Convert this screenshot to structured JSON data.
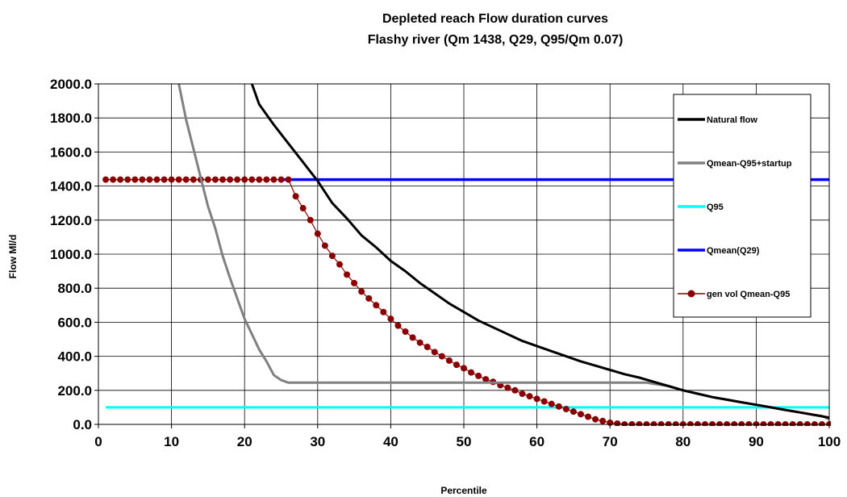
{
  "chart_data": {
    "type": "line",
    "title": "Depleted reach Flow duration curves",
    "subtitle": "Flashy river (Qm 1438, Q29, Q95/Qm 0.07)",
    "xlabel": "Percentile",
    "ylabel": "Flow Ml/d",
    "xlim": [
      0,
      100
    ],
    "ylim": [
      0,
      2000
    ],
    "x_ticks": [
      "0",
      "10",
      "20",
      "30",
      "40",
      "50",
      "60",
      "70",
      "80",
      "90",
      "100"
    ],
    "y_ticks": [
      "0.0",
      "200.0",
      "400.0",
      "600.0",
      "800.0",
      "1000.0",
      "1200.0",
      "1400.0",
      "1600.0",
      "1800.0",
      "2000.0"
    ],
    "grid": true,
    "legend_position": "right",
    "series": [
      {
        "name": "Natural flow",
        "color": "#000000",
        "x": [
          21,
          22,
          24,
          26,
          28,
          30,
          32,
          34,
          36,
          38,
          40,
          42,
          44,
          46,
          48,
          50,
          52,
          54,
          56,
          58,
          60,
          62,
          64,
          66,
          68,
          70,
          72,
          74,
          76,
          78,
          80,
          82,
          84,
          86,
          88,
          90,
          92,
          94,
          96,
          98,
          100
        ],
        "y": [
          2000,
          1880,
          1760,
          1650,
          1540,
          1430,
          1300,
          1210,
          1110,
          1040,
          960,
          900,
          830,
          770,
          710,
          660,
          610,
          570,
          530,
          490,
          460,
          430,
          400,
          370,
          345,
          320,
          295,
          275,
          250,
          225,
          200,
          180,
          160,
          145,
          130,
          115,
          100,
          85,
          70,
          55,
          40
        ]
      },
      {
        "name": "Qmean-Q95+startup",
        "color": "#808080",
        "x": [
          11,
          12,
          13,
          14,
          15,
          16,
          17,
          18,
          19,
          20,
          21,
          22,
          23,
          24,
          25,
          26,
          27,
          30,
          40,
          50,
          60,
          70,
          75,
          78,
          80,
          82,
          84,
          86,
          88,
          90,
          92,
          94,
          96,
          98,
          99,
          100
        ],
        "y": [
          2000,
          1790,
          1620,
          1450,
          1280,
          1150,
          990,
          860,
          740,
          620,
          530,
          440,
          370,
          290,
          260,
          245,
          245,
          245,
          245,
          245,
          245,
          245,
          245,
          225,
          200,
          180,
          160,
          145,
          130,
          115,
          100,
          85,
          70,
          55,
          50,
          30
        ]
      },
      {
        "name": "Q95",
        "color": "#00ffff",
        "x": [
          1,
          100
        ],
        "y": [
          100,
          100
        ]
      },
      {
        "name": "Qmean(Q29)",
        "color": "#0000ff",
        "x": [
          25,
          100
        ],
        "y": [
          1438,
          1438
        ]
      },
      {
        "name": "gen vol Qmean-Q95",
        "color": "#8b0000",
        "x": [
          1,
          2,
          3,
          4,
          5,
          6,
          7,
          8,
          9,
          10,
          11,
          12,
          13,
          14,
          15,
          16,
          17,
          18,
          19,
          20,
          21,
          22,
          23,
          24,
          25,
          26,
          27,
          28,
          29,
          30,
          31,
          32,
          33,
          34,
          35,
          36,
          37,
          38,
          39,
          40,
          41,
          42,
          43,
          44,
          45,
          46,
          47,
          48,
          49,
          50,
          51,
          52,
          53,
          54,
          55,
          56,
          57,
          58,
          59,
          60,
          61,
          62,
          63,
          64,
          65,
          66,
          67,
          68,
          69,
          70,
          71,
          72,
          73,
          74,
          75,
          76,
          77,
          78,
          79,
          80,
          81,
          82,
          83,
          84,
          85,
          86,
          87,
          88,
          89,
          90,
          91,
          92,
          93,
          94,
          95,
          96,
          97,
          98,
          99,
          100
        ],
        "y": [
          1438,
          1438,
          1438,
          1438,
          1438,
          1438,
          1438,
          1438,
          1438,
          1438,
          1438,
          1438,
          1438,
          1438,
          1438,
          1438,
          1438,
          1438,
          1438,
          1438,
          1438,
          1438,
          1438,
          1438,
          1438,
          1438,
          1340,
          1270,
          1200,
          1120,
          1050,
          990,
          940,
          880,
          830,
          780,
          740,
          700,
          660,
          620,
          580,
          545,
          510,
          480,
          455,
          425,
          400,
          375,
          350,
          330,
          305,
          285,
          265,
          250,
          230,
          215,
          200,
          180,
          165,
          150,
          135,
          120,
          105,
          90,
          75,
          60,
          45,
          30,
          20,
          10,
          5,
          0,
          0,
          0,
          0,
          0,
          0,
          0,
          0,
          0,
          0,
          0,
          0,
          0,
          0,
          0,
          0,
          0,
          0,
          0,
          0,
          0,
          0,
          0,
          0,
          0,
          0,
          0,
          0,
          0
        ]
      }
    ]
  }
}
